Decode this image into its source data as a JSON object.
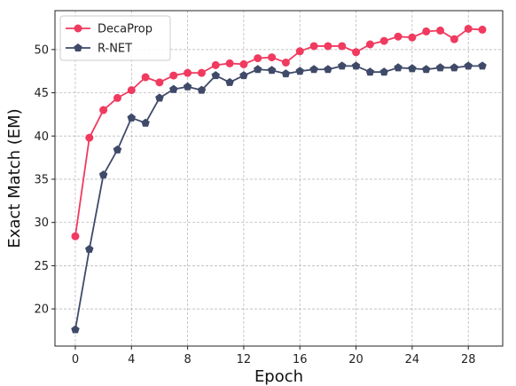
{
  "chart_data": {
    "type": "line",
    "xlabel": "Epoch",
    "ylabel": "Exact Match (EM)",
    "xlim": [
      -1.45,
      30.45
    ],
    "ylim": [
      15.7,
      54.5
    ],
    "x_ticks": [
      0,
      4,
      8,
      12,
      16,
      20,
      24,
      28
    ],
    "y_ticks": [
      20,
      25,
      30,
      35,
      40,
      45,
      50
    ],
    "grid": true,
    "legend_position": "top-left",
    "x": [
      0,
      1,
      2,
      3,
      4,
      5,
      6,
      7,
      8,
      9,
      10,
      11,
      12,
      13,
      14,
      15,
      16,
      17,
      18,
      19,
      20,
      21,
      22,
      23,
      24,
      25,
      26,
      27,
      28,
      29
    ],
    "series": [
      {
        "name": "DecaProp",
        "color": "#f03a5f",
        "marker": "circle",
        "values": [
          28.4,
          39.8,
          43.0,
          44.4,
          45.3,
          46.8,
          46.2,
          47.0,
          47.3,
          47.3,
          48.2,
          48.4,
          48.3,
          49.0,
          49.1,
          48.5,
          49.8,
          50.4,
          50.4,
          50.4,
          49.7,
          50.6,
          51.0,
          51.5,
          51.4,
          52.1,
          52.2,
          51.2,
          52.4,
          52.3
        ]
      },
      {
        "name": "R-NET",
        "color": "#3f4a69",
        "marker": "pentagon",
        "values": [
          17.6,
          26.9,
          35.5,
          38.4,
          42.1,
          41.5,
          44.4,
          45.4,
          45.7,
          45.3,
          47.0,
          46.2,
          47.0,
          47.7,
          47.6,
          47.2,
          47.5,
          47.7,
          47.7,
          48.1,
          48.1,
          47.4,
          47.4,
          47.9,
          47.8,
          47.7,
          47.9,
          47.9,
          48.1,
          48.1
        ]
      }
    ]
  }
}
